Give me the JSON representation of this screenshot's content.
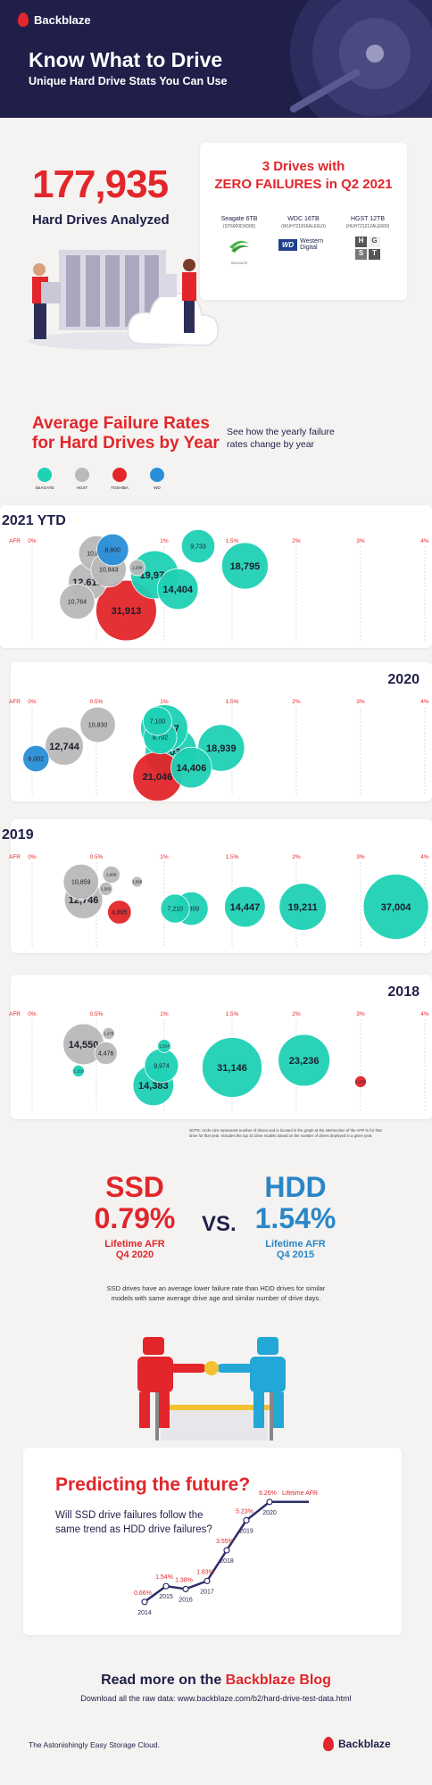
{
  "header": {
    "brand": "Backblaze",
    "title": "Know What to Drive",
    "subtitle": "Unique Hard Drive Stats You Can Use"
  },
  "analyzed": {
    "count": "177,935",
    "label": "Hard Drives Analyzed"
  },
  "zero_failures": {
    "title_line1": "3 Drives with",
    "title_line2": "ZERO FAILURES in Q2 2021",
    "drives": [
      {
        "name": "Seagate 6TB",
        "model": "(ST6000DX000)",
        "logo": "SEAGATE"
      },
      {
        "name": "WDC 16TB",
        "model": "(WUH721816ALE6L0)",
        "logo": "Western Digital"
      },
      {
        "name": "HGST 12TB",
        "model": "(HUH721212ALE600)",
        "logo": "H G S T"
      }
    ]
  },
  "afr_section": {
    "title_line1": "Average Failure Rates",
    "title_line2": "for Hard Drives by Year",
    "desc_line1": "See how the yearly failure",
    "desc_line2": "rates change by year",
    "legend": [
      {
        "label": "SEAGATE",
        "color": "#1fd1b5"
      },
      {
        "label": "HGST",
        "color": "#b9b9b9"
      },
      {
        "label": "TOSHIBA",
        "color": "#e2262b"
      },
      {
        "label": "WD",
        "color": "#2a8fd8"
      }
    ],
    "axis_prefix": "AFR",
    "ticks": [
      "0%",
      "0.5%",
      "1%",
      "1.5%",
      "2%",
      "3%",
      "4%"
    ],
    "note_line1": "NOTE: circle size represents number of drives and is located in the graph at the intersection of the AFR % for that",
    "note_line2": "drive for that year. Includes the top 10 drive models based on the number of drives deployed in a given year."
  },
  "chart_data": [
    {
      "type": "scatter",
      "title": "2021 YTD",
      "xlabel": "AFR",
      "points": [
        {
          "label": "31,913",
          "afr": 0.72,
          "count": 31913,
          "maker": "TOSHIBA"
        },
        {
          "label": "19,970",
          "afr": 0.93,
          "count": 19970,
          "maker": "SEAGATE"
        },
        {
          "label": "18,795",
          "afr": 1.6,
          "count": 18795,
          "maker": "SEAGATE"
        },
        {
          "label": "14,404",
          "afr": 1.1,
          "count": 14404,
          "maker": "SEAGATE"
        },
        {
          "label": "9,733",
          "afr": 1.25,
          "count": 9733,
          "maker": "SEAGATE"
        },
        {
          "label": "10,875",
          "afr": 0.5,
          "count": 10875,
          "maker": "HGST"
        },
        {
          "label": "12,610",
          "afr": 0.43,
          "count": 12610,
          "maker": "HGST"
        },
        {
          "label": "10,764",
          "afr": 0.35,
          "count": 10764,
          "maker": "HGST"
        },
        {
          "label": "10,843",
          "afr": 0.59,
          "count": 10843,
          "maker": "HGST"
        },
        {
          "label": "2,209",
          "afr": 0.8,
          "count": 2209,
          "maker": "HGST"
        },
        {
          "label": "8,800",
          "afr": 0.62,
          "count": 8800,
          "maker": "WD"
        }
      ]
    },
    {
      "type": "scatter",
      "title": "2020",
      "xlabel": "AFR",
      "points": [
        {
          "label": "10,830",
          "afr": 0.51,
          "count": 10830,
          "maker": "HGST"
        },
        {
          "label": "12,744",
          "afr": 0.25,
          "count": 12744,
          "maker": "HGST"
        },
        {
          "label": "6,002",
          "afr": 0.03,
          "count": 6002,
          "maker": "WD"
        },
        {
          "label": "7,100",
          "afr": 0.95,
          "count": 7100,
          "maker": "SEAGATE"
        },
        {
          "label": "19,287",
          "afr": 1.0,
          "count": 19287,
          "maker": "SEAGATE"
        },
        {
          "label": "9,702",
          "afr": 0.97,
          "count": 9702,
          "maker": "SEAGATE"
        },
        {
          "label": "23,036",
          "afr": 1.05,
          "count": 23036,
          "maker": "SEAGATE"
        },
        {
          "label": "18,939",
          "afr": 1.42,
          "count": 18939,
          "maker": "SEAGATE"
        },
        {
          "label": "14,406",
          "afr": 1.2,
          "count": 14406,
          "maker": "SEAGATE"
        },
        {
          "label": "21,046",
          "afr": 0.95,
          "count": 21046,
          "maker": "TOSHIBA"
        }
      ]
    },
    {
      "type": "scatter",
      "title": "2019",
      "xlabel": "AFR",
      "points": [
        {
          "label": "10,859",
          "afr": 0.38,
          "count": 10859,
          "maker": "HGST"
        },
        {
          "label": "12,746",
          "afr": 0.4,
          "count": 12746,
          "maker": "HGST"
        },
        {
          "label": "2,608",
          "afr": 0.61,
          "count": 2608,
          "maker": "HGST"
        },
        {
          "label": "1,560",
          "afr": 0.57,
          "count": 1560,
          "maker": "HGST"
        },
        {
          "label": "1,000",
          "afr": 0.8,
          "count": 1000,
          "maker": "HGST"
        },
        {
          "label": "4,895",
          "afr": 0.67,
          "count": 4895,
          "maker": "TOSHIBA"
        },
        {
          "label": "7,210",
          "afr": 1.08,
          "count": 7210,
          "maker": "SEAGATE"
        },
        {
          "label": "9,809",
          "afr": 1.2,
          "count": 9809,
          "maker": "SEAGATE"
        },
        {
          "label": "14,447",
          "afr": 1.6,
          "count": 14447,
          "maker": "SEAGATE"
        },
        {
          "label": "19,211",
          "afr": 2.1,
          "count": 19211,
          "maker": "SEAGATE"
        },
        {
          "label": "37,004",
          "afr": 3.55,
          "count": 37004,
          "maker": "SEAGATE"
        }
      ]
    },
    {
      "type": "scatter",
      "title": "2018",
      "xlabel": "AFR",
      "points": [
        {
          "label": "14,550",
          "afr": 0.4,
          "count": 14550,
          "maker": "HGST"
        },
        {
          "label": "1,279",
          "afr": 0.59,
          "count": 1279,
          "maker": "HGST"
        },
        {
          "label": "4,476",
          "afr": 0.57,
          "count": 4476,
          "maker": "HGST"
        },
        {
          "label": "1,210",
          "afr": 0.36,
          "count": 1210,
          "maker": "SEAGATE"
        },
        {
          "label": "1,524",
          "afr": 1.0,
          "count": 1524,
          "maker": "SEAGATE"
        },
        {
          "label": "9,974",
          "afr": 0.98,
          "count": 9974,
          "maker": "SEAGATE"
        },
        {
          "label": "14,383",
          "afr": 0.92,
          "count": 14383,
          "maker": "SEAGATE"
        },
        {
          "label": "31,146",
          "afr": 1.5,
          "count": 31146,
          "maker": "SEAGATE"
        },
        {
          "label": "23,236",
          "afr": 2.12,
          "count": 23236,
          "maker": "SEAGATE"
        },
        {
          "label": "1,205",
          "afr": 3.0,
          "count": 1205,
          "maker": "TOSHIBA"
        }
      ]
    },
    {
      "type": "line",
      "x": [
        "2014",
        "2015",
        "2016",
        "2017",
        "2018",
        "2019",
        "2020"
      ],
      "values": [
        0.66,
        1.54,
        1.38,
        1.83,
        3.55,
        5.23,
        6.26
      ],
      "labels": [
        "0.66%",
        "1.54%",
        "1.38%",
        "1.83%",
        "3.55%",
        "5.23%",
        "6.26%"
      ],
      "end_label": "Lifetime AFR"
    }
  ],
  "comparison": {
    "ssd": {
      "type": "SSD",
      "value": "0.79%",
      "label": "Lifetime AFR",
      "period": "Q4 2020"
    },
    "vs": "VS.",
    "hdd": {
      "type": "HDD",
      "value": "1.54%",
      "label": "Lifetime AFR",
      "period": "Q4 2015"
    },
    "desc_line1": "SSD drives have an average lower failure rate than HDD drives for similar",
    "desc_line2": "models with same average drive age and similar number of drive days."
  },
  "future": {
    "title": "Predicting the future?",
    "question_line1": "Will SSD drive failures follow the",
    "question_line2": "same trend as HDD drive failures?"
  },
  "footer": {
    "read_more_prefix": "Read more on the ",
    "read_more_link": "Backblaze Blog",
    "download": "Download all the raw data: www.backblaze.com/b2/hard-drive-test-data.html",
    "tagline": "The Astonishingly Easy Storage Cloud.",
    "brand": "Backblaze"
  }
}
